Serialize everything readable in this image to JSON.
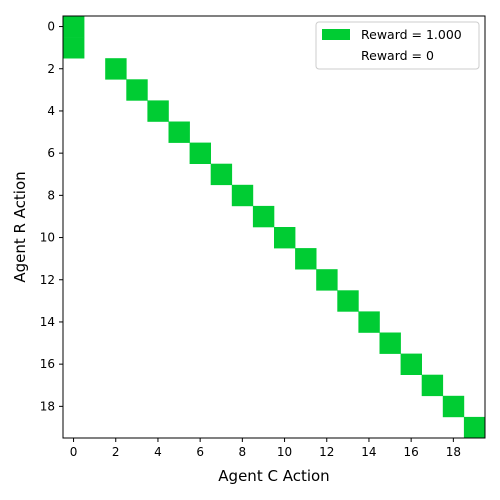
{
  "chart_data": {
    "type": "heatmap",
    "xlabel": "Agent C Action",
    "ylabel": "Agent R Action",
    "x_ticks": [
      0,
      2,
      4,
      6,
      8,
      10,
      12,
      14,
      16,
      18
    ],
    "y_ticks": [
      0,
      2,
      4,
      6,
      8,
      10,
      12,
      14,
      16,
      18
    ],
    "x_range": [
      -0.5,
      19.5
    ],
    "y_range": [
      -0.5,
      19.5
    ],
    "y_inverted": true,
    "grid": false,
    "legend_position": "top-right",
    "legend": [
      {
        "label": "Reward = 1.000",
        "color": "#00CC33"
      },
      {
        "label": "Reward = 0",
        "color": "#ffffff"
      }
    ],
    "reward_one_cells": [
      {
        "row": 0,
        "col": 0
      },
      {
        "row": 1,
        "col": 0
      },
      {
        "row": 2,
        "col": 2
      },
      {
        "row": 3,
        "col": 3
      },
      {
        "row": 4,
        "col": 4
      },
      {
        "row": 5,
        "col": 5
      },
      {
        "row": 6,
        "col": 6
      },
      {
        "row": 7,
        "col": 7
      },
      {
        "row": 8,
        "col": 8
      },
      {
        "row": 9,
        "col": 9
      },
      {
        "row": 10,
        "col": 10
      },
      {
        "row": 11,
        "col": 11
      },
      {
        "row": 12,
        "col": 12
      },
      {
        "row": 13,
        "col": 13
      },
      {
        "row": 14,
        "col": 14
      },
      {
        "row": 15,
        "col": 15
      },
      {
        "row": 16,
        "col": 16
      },
      {
        "row": 17,
        "col": 17
      },
      {
        "row": 18,
        "col": 18
      },
      {
        "row": 19,
        "col": 19
      }
    ]
  }
}
